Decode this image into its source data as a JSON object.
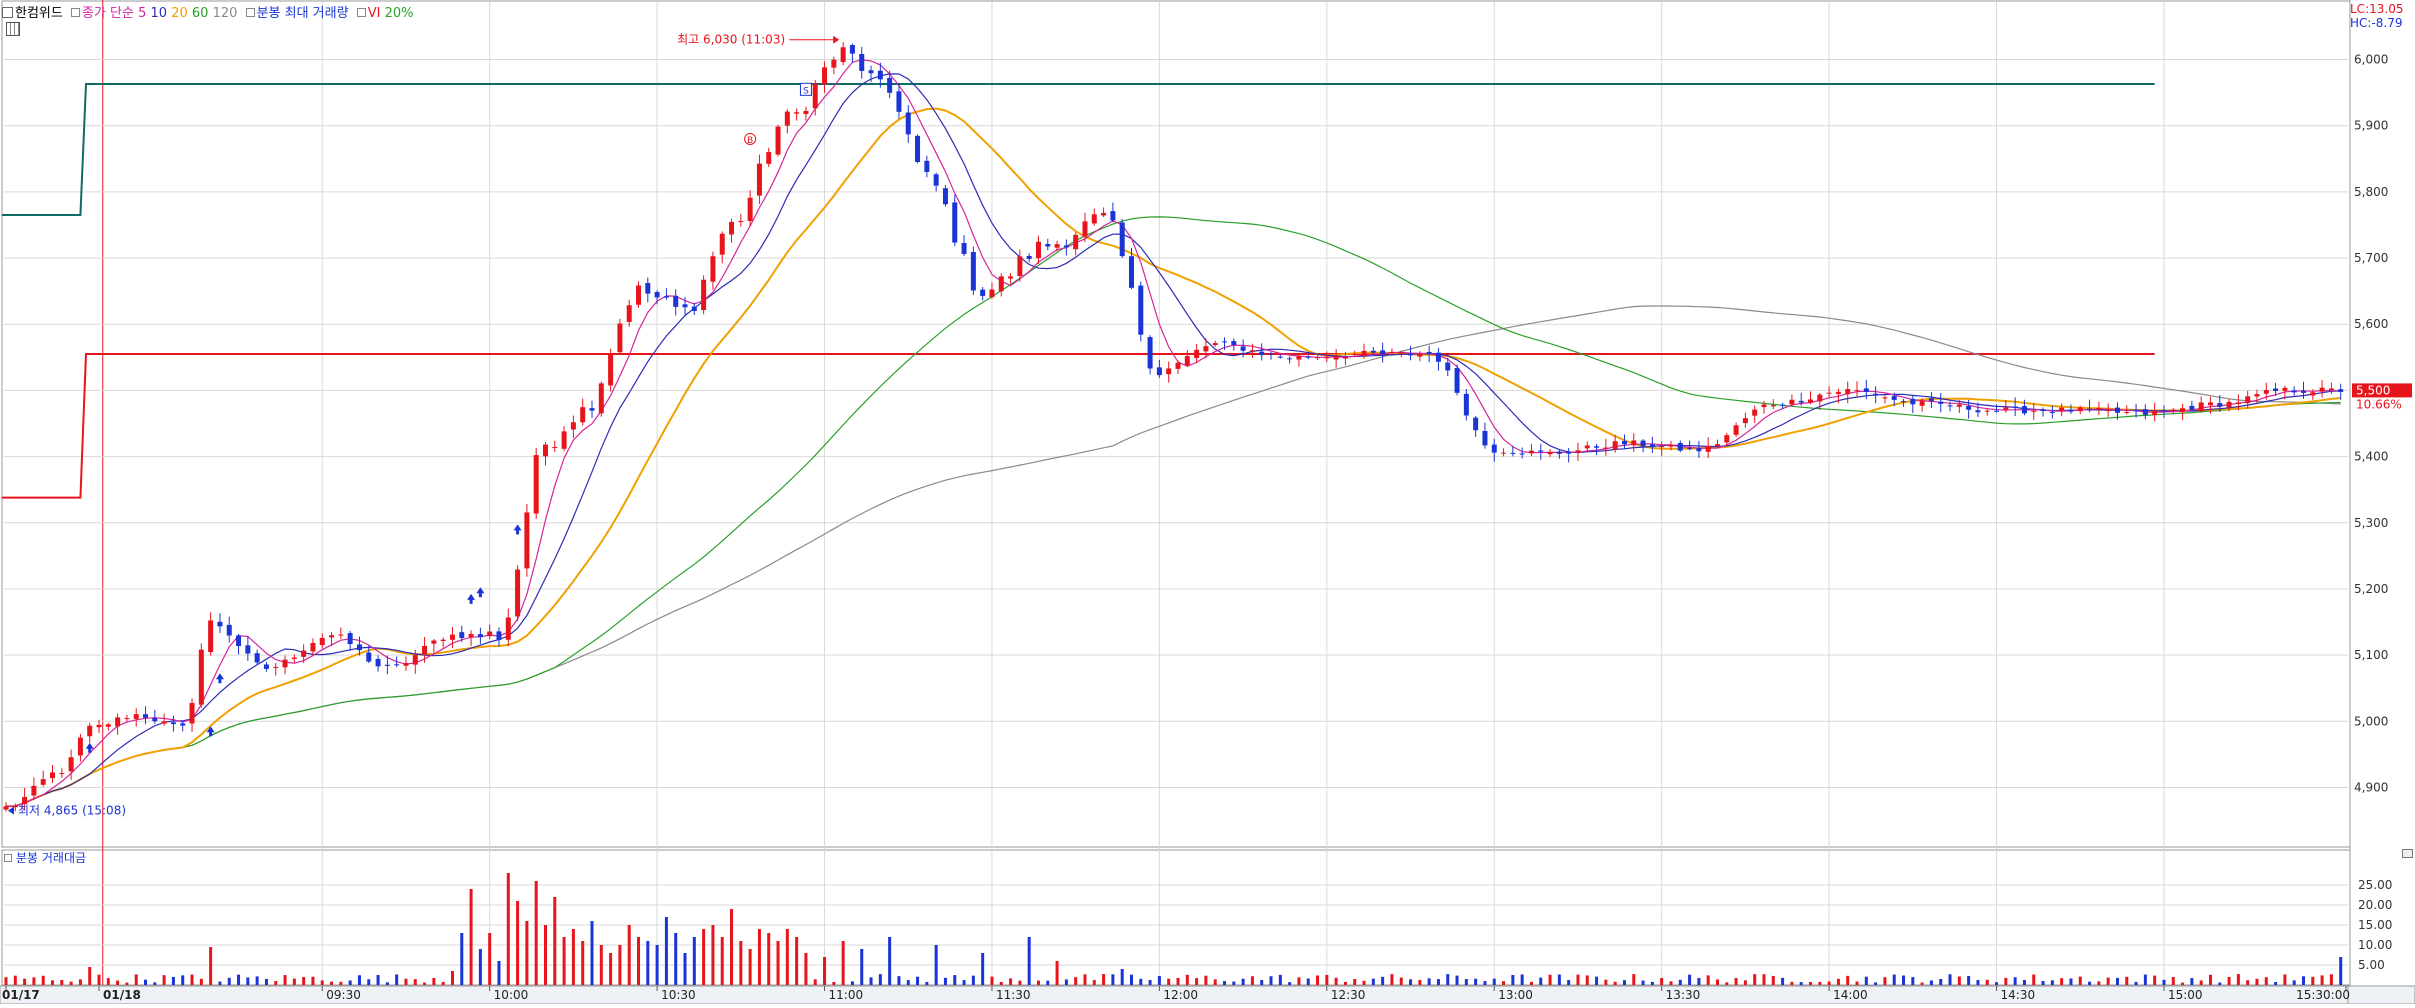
{
  "header": {
    "symbol": "한컴위드",
    "ma_label": "종가 단순",
    "ma_periods": [
      {
        "label": "5",
        "color": "#d6249f"
      },
      {
        "label": "10",
        "color": "#2b2bb8"
      },
      {
        "label": "20",
        "color": "#f0a000"
      },
      {
        "label": "60",
        "color": "#2aa02a"
      },
      {
        "label": "120",
        "color": "#8a8a8a"
      }
    ],
    "max_volume_label": "분봉 최대 거래량",
    "vi_label": "VI",
    "vi_value": "20%"
  },
  "right_top": {
    "lc": "LC:13.05",
    "hc": "HC:-8.79"
  },
  "volume_panel": {
    "title": "분봉 거래대금"
  },
  "colors": {
    "up": "#e8141c",
    "down": "#1a34d6",
    "grid": "#d9d9d9",
    "teal": "#0f6b63",
    "redline": "#e8141c"
  },
  "chart_data": [
    {
      "type": "candlestick",
      "title": "",
      "x_ticks": [
        "01/17",
        "01/18",
        "09:30",
        "10:00",
        "10:30",
        "11:00",
        "11:30",
        "12:00",
        "12:30",
        "13:00",
        "13:30",
        "14:00",
        "14:30",
        "15:00",
        "15:30:00"
      ],
      "y_ticks": [
        "6,000",
        "5,900",
        "5,800",
        "5,700",
        "5,600",
        "5,500",
        "5,400",
        "5,300",
        "5,200",
        "5,100",
        "5,000",
        "4,900"
      ],
      "ylim": [
        4810,
        6090
      ],
      "annotations": {
        "high": "최고 6,030 (11:03)",
        "low": "최저 4,865 (15:08)",
        "current_price": "5,500",
        "current_change": "10.66%",
        "markers": [
          "B",
          "S"
        ]
      },
      "reference_lines": [
        {
          "name": "teal",
          "before": 5765,
          "after": 5963
        },
        {
          "name": "red",
          "before": 5338,
          "after": 5555
        }
      ],
      "waypoints": [
        [
          0,
          4870
        ],
        [
          6,
          4925
        ],
        [
          9,
          4990
        ],
        [
          14,
          5010
        ],
        [
          19,
          4990
        ],
        [
          22,
          5150
        ],
        [
          28,
          5080
        ],
        [
          35,
          5130
        ],
        [
          41,
          5080
        ],
        [
          48,
          5130
        ],
        [
          53,
          5130
        ],
        [
          58,
          5420
        ],
        [
          62,
          5470
        ],
        [
          68,
          5650
        ],
        [
          73,
          5620
        ],
        [
          78,
          5750
        ],
        [
          84,
          5910
        ],
        [
          90,
          6010
        ],
        [
          95,
          5950
        ],
        [
          99,
          5820
        ],
        [
          105,
          5650
        ],
        [
          112,
          5720
        ],
        [
          118,
          5760
        ],
        [
          124,
          5530
        ],
        [
          130,
          5570
        ],
        [
          138,
          5550
        ],
        [
          146,
          5555
        ],
        [
          153,
          5555
        ],
        [
          160,
          5410
        ],
        [
          166,
          5405
        ],
        [
          174,
          5420
        ],
        [
          182,
          5410
        ],
        [
          190,
          5480
        ],
        [
          198,
          5500
        ],
        [
          206,
          5480
        ],
        [
          214,
          5470
        ],
        [
          222,
          5470
        ],
        [
          230,
          5465
        ],
        [
          238,
          5480
        ],
        [
          245,
          5500
        ],
        [
          251,
          5500
        ]
      ]
    },
    {
      "type": "bar",
      "title": "분봉 거래대금",
      "y_ticks": [
        "25.00",
        "20.00",
        "15.00",
        "10.00",
        "5.00"
      ],
      "ylim": [
        0,
        30
      ],
      "spikes": [
        [
          9,
          4.5
        ],
        [
          22,
          9.5
        ],
        [
          48,
          3.5
        ],
        [
          49,
          13
        ],
        [
          50,
          24
        ],
        [
          51,
          9
        ],
        [
          52,
          13
        ],
        [
          53,
          6
        ],
        [
          54,
          28
        ],
        [
          55,
          21
        ],
        [
          56,
          16
        ],
        [
          57,
          26
        ],
        [
          58,
          15
        ],
        [
          59,
          22
        ],
        [
          60,
          12
        ],
        [
          61,
          14
        ],
        [
          62,
          11
        ],
        [
          63,
          16
        ],
        [
          64,
          10
        ],
        [
          65,
          8
        ],
        [
          66,
          10
        ],
        [
          67,
          15
        ],
        [
          68,
          12
        ],
        [
          69,
          11
        ],
        [
          70,
          10
        ],
        [
          71,
          17
        ],
        [
          72,
          13
        ],
        [
          73,
          8
        ],
        [
          74,
          12
        ],
        [
          75,
          14
        ],
        [
          76,
          15
        ],
        [
          77,
          12
        ],
        [
          78,
          19
        ],
        [
          79,
          11
        ],
        [
          80,
          9
        ],
        [
          81,
          14
        ],
        [
          82,
          13
        ],
        [
          83,
          11
        ],
        [
          84,
          14
        ],
        [
          85,
          12
        ],
        [
          86,
          8
        ],
        [
          88,
          7
        ],
        [
          90,
          11
        ],
        [
          92,
          9
        ],
        [
          95,
          12
        ],
        [
          100,
          10
        ],
        [
          105,
          8
        ],
        [
          110,
          12
        ],
        [
          113,
          6
        ],
        [
          120,
          4
        ],
        [
          251,
          7
        ]
      ]
    }
  ]
}
